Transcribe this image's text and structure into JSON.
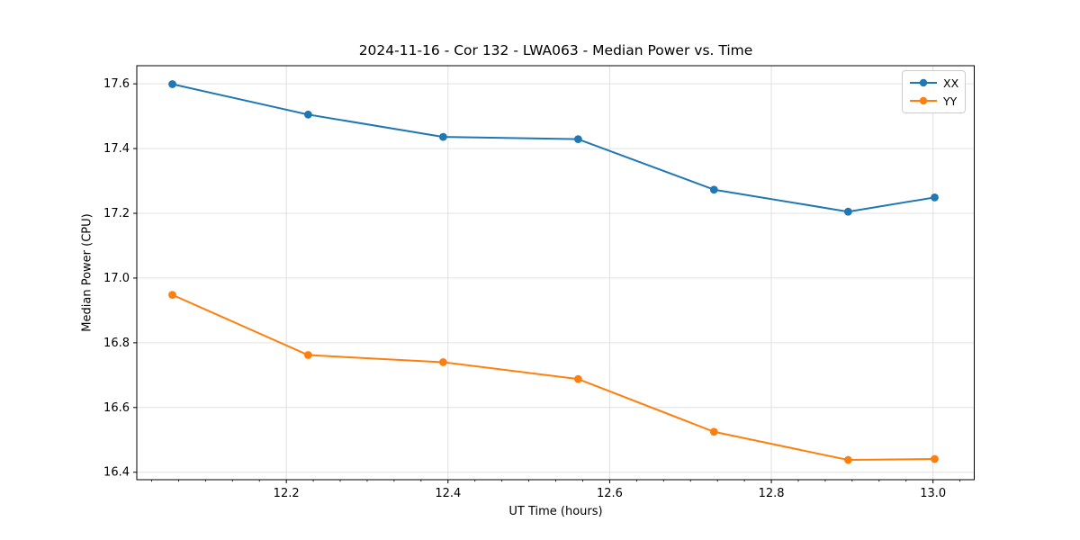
{
  "chart_data": {
    "type": "line",
    "title": "2024-11-16 - Cor 132 - LWA063 - Median Power vs. Time",
    "xlabel": "UT Time (hours)",
    "ylabel": "Median Power (CPU)",
    "xlim": [
      12.015,
      13.051
    ],
    "ylim": [
      16.377,
      17.656
    ],
    "x_ticks": [
      12.2,
      12.4,
      12.6,
      12.8,
      13.0
    ],
    "x_tick_labels": [
      "12.2",
      "12.4",
      "12.6",
      "12.8",
      "13.0"
    ],
    "y_ticks": [
      16.4,
      16.6,
      16.8,
      17.0,
      17.2,
      17.4,
      17.6
    ],
    "y_tick_labels": [
      "16.4",
      "16.6",
      "16.8",
      "17.0",
      "17.2",
      "17.4",
      "17.6"
    ],
    "x_minor_tick_step": 0.0333333,
    "grid": true,
    "grid_color": "#e0e0e0",
    "x": [
      12.059,
      12.227,
      12.394,
      12.561,
      12.729,
      12.895,
      13.002
    ],
    "series": [
      {
        "name": "XX",
        "color": "#1f77b4",
        "values": [
          17.599,
          17.505,
          17.436,
          17.429,
          17.273,
          17.205,
          17.249
        ]
      },
      {
        "name": "YY",
        "color": "#ff7f0e",
        "values": [
          16.948,
          16.762,
          16.74,
          16.688,
          16.525,
          16.438,
          16.441
        ]
      }
    ],
    "legend": {
      "position": "upper right",
      "entries": [
        "XX",
        "YY"
      ]
    }
  }
}
